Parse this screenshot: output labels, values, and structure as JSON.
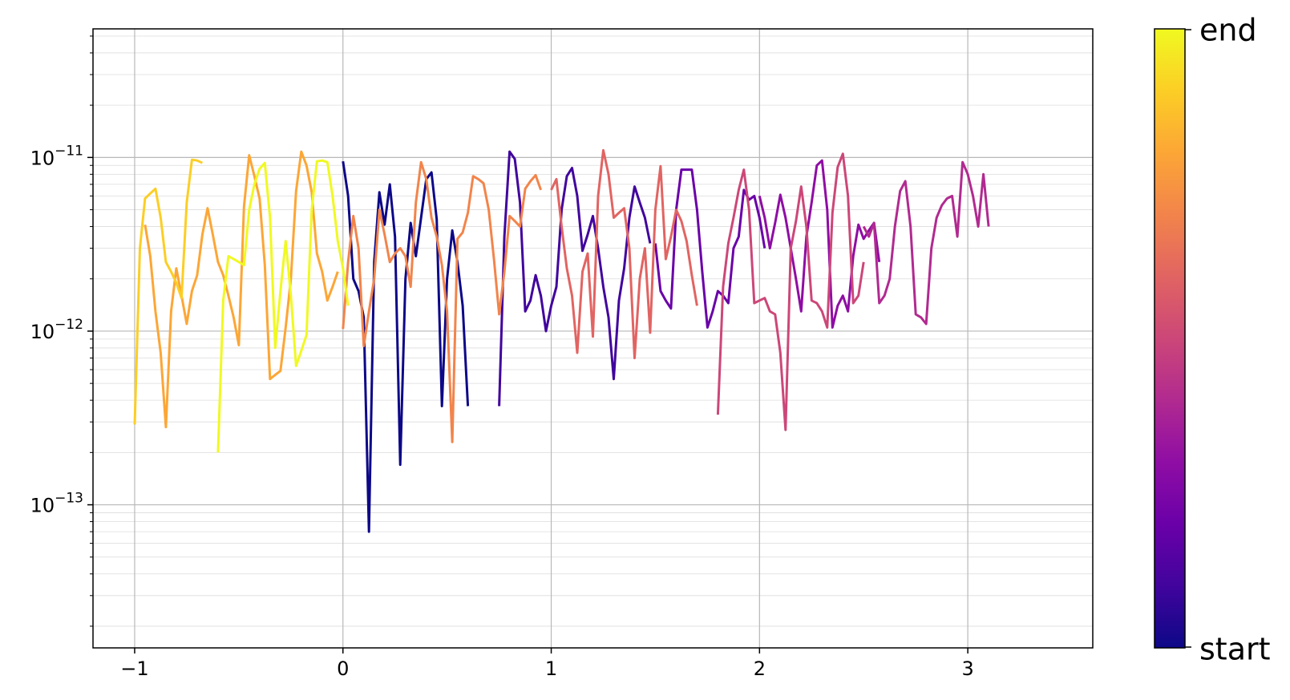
{
  "chart_data": {
    "type": "line",
    "title": "",
    "xlabel": "",
    "ylabel": "",
    "xlim": [
      -1.2,
      3.6
    ],
    "ylim": [
      1.5e-14,
      5.5e-11
    ],
    "y_scale": "log",
    "grid": {
      "major": true,
      "minor_y": true
    },
    "x_ticks": [
      -1,
      0,
      1,
      2,
      3
    ],
    "x_tick_labels": [
      "−1",
      "0",
      "1",
      "2",
      "3"
    ],
    "y_ticks": [
      1e-13,
      1e-12,
      1e-11
    ],
    "y_tick_labels": [
      {
        "base": "10",
        "exp": "−13"
      },
      {
        "base": "10",
        "exp": "−12"
      },
      {
        "base": "10",
        "exp": "−11"
      }
    ],
    "colormap": "plasma",
    "colorbar": {
      "min_label": "start",
      "max_label": "end"
    },
    "colormap_stops": [
      "#0d0887",
      "#41049d",
      "#6a00a8",
      "#8f0da4",
      "#b12a90",
      "#cc4778",
      "#e16462",
      "#f2844b",
      "#fca636",
      "#fcce25",
      "#f0f921"
    ],
    "x_step": 0.025,
    "segments": [
      {
        "color": "#0d0887",
        "x_start": 0.0,
        "y": [
          9.5e-12,
          6e-12,
          2e-12,
          1.7e-12,
          1.2e-12,
          7e-14,
          2.5e-12,
          6.3e-12,
          4.1e-12,
          7e-12,
          3.5e-12,
          1.7e-13,
          2e-12,
          4.2e-12,
          2.7e-12,
          4.5e-12,
          7.5e-12,
          8.2e-12,
          4.4e-12,
          3.7e-13,
          2e-12,
          3.8e-12,
          2.5e-12,
          1.4e-12,
          3.7e-13
        ]
      },
      {
        "color": "#41049d",
        "x_start": 0.75,
        "y": [
          3.7e-13,
          3.5e-12,
          1.08e-11,
          9.8e-12,
          5.5e-12,
          1.3e-12,
          1.5e-12,
          2.1e-12,
          1.6e-12,
          1e-12,
          1.4e-12,
          1.8e-12,
          5e-12,
          7.8e-12,
          8.7e-12,
          6e-12,
          2.9e-12,
          3.6e-12,
          4.6e-12,
          3e-12,
          1.8e-12,
          1.2e-12,
          5.3e-13,
          1.5e-12,
          2.3e-12,
          4.5e-12,
          6.8e-12,
          5.5e-12,
          4.5e-12,
          3.2e-12
        ]
      },
      {
        "color": "#6a00a8",
        "x_start": 1.5,
        "y": [
          3.2e-12,
          1.7e-12,
          1.5e-12,
          1.35e-12,
          5e-12,
          8.5e-12,
          8.5e-12,
          8.5e-12,
          5e-12,
          2.2e-12,
          1.05e-12,
          1.3e-12,
          1.7e-12,
          1.6e-12,
          1.45e-12,
          3e-12,
          3.5e-12,
          6.5e-12,
          5.7e-12,
          6e-12,
          4.5e-12,
          3e-12
        ]
      },
      {
        "color": "#8f0da4",
        "x_start": 2.0,
        "y": [
          6e-12,
          4.5e-12,
          3e-12,
          4.2e-12,
          6.1e-12,
          4.5e-12,
          3e-12,
          2e-12,
          1.3e-12,
          3.5e-12,
          5.5e-12,
          9e-12,
          9.6e-12,
          5e-12,
          1.05e-12,
          1.4e-12,
          1.6e-12,
          1.3e-12,
          2.7e-12,
          4.1e-12,
          3.4e-12,
          3.8e-12,
          4.2e-12,
          2.5e-12
        ]
      },
      {
        "color": "#b12a90",
        "x_start": 2.5,
        "y": [
          4e-12,
          3.5e-12,
          4.2e-12,
          1.45e-12,
          1.6e-12,
          2e-12,
          4e-12,
          6.4e-12,
          7.3e-12,
          4e-12,
          1.25e-12,
          1.2e-12,
          1.1e-12,
          3e-12,
          4.5e-12,
          5.3e-12,
          5.8e-12,
          6e-12,
          3.5e-12,
          9.4e-12,
          8e-12,
          6e-12,
          4e-12,
          8e-12,
          4e-12
        ]
      },
      {
        "color": "#cc4778",
        "x_start": 1.8,
        "y": [
          3.3e-13,
          1.8e-12,
          3.2e-12,
          4.5e-12,
          6.5e-12,
          8.5e-12,
          5e-12,
          1.45e-12,
          1.5e-12,
          1.55e-12,
          1.3e-12,
          1.25e-12,
          7.5e-13,
          2.7e-13,
          3e-12,
          4.3e-12,
          6.8e-12,
          4e-12,
          1.5e-12,
          1.45e-12,
          1.3e-12,
          1.05e-12,
          4.8e-12,
          8.8e-12,
          1.05e-11,
          6e-12,
          1.45e-12,
          1.6e-12,
          2.5e-12
        ]
      },
      {
        "color": "#e16462",
        "x_start": 1.0,
        "y": [
          6.5e-12,
          7.5e-12,
          4e-12,
          2.3e-12,
          1.6e-12,
          7.5e-13,
          2.2e-12,
          2.8e-12,
          9.3e-13,
          6e-12,
          1.1e-11,
          8e-12,
          4.5e-12,
          4.8e-12,
          5.1e-12,
          3e-12,
          7e-13,
          2e-12,
          3e-12,
          9.8e-13,
          5e-12,
          8.9e-12,
          2.6e-12,
          3.5e-12,
          5e-12,
          4.3e-12,
          3.3e-12,
          2.1e-12,
          1.4e-12
        ]
      },
      {
        "color": "#f2844b",
        "x_start": 0.0,
        "y": [
          1.03e-12,
          2.5e-12,
          4.6e-12,
          3e-12,
          8.2e-13,
          1.3e-12,
          2e-12,
          5e-12,
          3.6e-12,
          2.5e-12,
          2.8e-12,
          3e-12,
          2.7e-12,
          1.8e-12,
          5.5e-12,
          9.4e-12,
          7.5e-12,
          4.5e-12,
          3.5e-12,
          2.4e-12,
          1.3e-12,
          2.3e-13,
          3.4e-12,
          3.7e-12,
          4.8e-12,
          7.8e-12,
          7.5e-12,
          7.1e-12,
          5e-12,
          2.6e-12,
          1.25e-12,
          2.2e-12,
          4.6e-12,
          4.3e-12,
          4e-12,
          6.6e-12,
          7.3e-12,
          7.9e-12,
          6.5e-12
        ]
      },
      {
        "color": "#fca636",
        "x_start": -0.95,
        "y": [
          4.1e-12,
          2.7e-12,
          1.3e-12,
          7.5e-13,
          2.8e-13,
          1.3e-12,
          2.3e-12,
          1.6e-12,
          1.1e-12,
          1.7e-12,
          2.1e-12,
          3.6e-12,
          5.1e-12,
          3.6e-12,
          2.5e-12,
          2.1e-12,
          1.6e-12,
          1.2e-12,
          8.3e-13,
          5.2e-12,
          1.03e-11,
          7.8e-12,
          5.8e-12,
          2.4e-12,
          5.3e-13,
          5.6e-13,
          5.9e-13,
          1.05e-12,
          2e-12,
          6.4e-12,
          1.08e-11,
          9e-12,
          6.3e-12,
          2.8e-12,
          2.2e-12,
          1.5e-12,
          1.8e-12,
          2.2e-12
        ]
      },
      {
        "color": "#fcce25",
        "x_start": -1.0,
        "y": [
          2.9e-13,
          3e-12,
          5.8e-12,
          6.2e-12,
          6.6e-12,
          4.5e-12,
          2.5e-12,
          2.2e-12,
          1.9e-12,
          1.55e-12,
          5.5e-12,
          9.7e-12,
          9.6e-12,
          9.3e-12
        ]
      },
      {
        "color": "#f0f921",
        "x_start": -0.6,
        "y": [
          2e-13,
          1.5e-12,
          2.7e-12,
          2.6e-12,
          2.5e-12,
          2.4e-12,
          5e-12,
          7e-12,
          8.6e-12,
          9.3e-12,
          4.5e-12,
          8e-13,
          1.7e-12,
          3.3e-12,
          1.6e-12,
          6.3e-13,
          7.7e-13,
          9.5e-13,
          5e-12,
          9.5e-12,
          9.6e-12,
          9.4e-12,
          6e-12,
          3.3e-12,
          2.3e-12,
          1.4e-12
        ]
      }
    ]
  }
}
